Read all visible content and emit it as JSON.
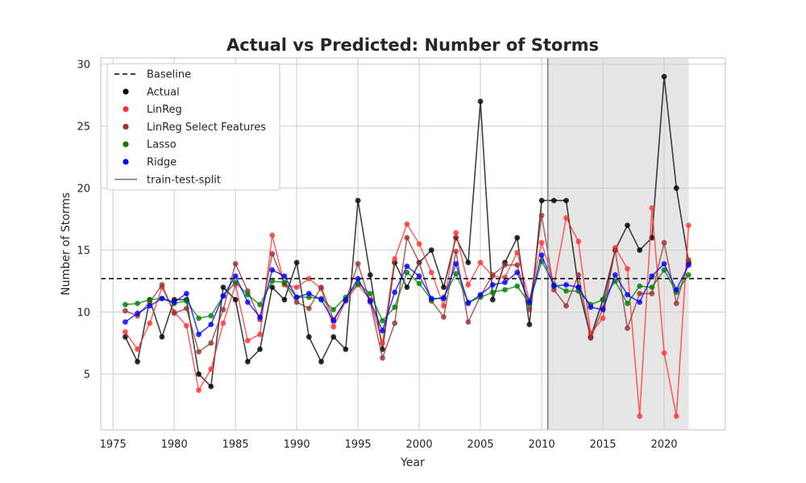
{
  "chart_data": {
    "type": "line",
    "title": "Actual vs Predicted: Number of Storms",
    "xlabel": "Year",
    "ylabel": "Number of Storms",
    "xlim": [
      1974,
      2025
    ],
    "ylim": [
      0.5,
      30.5
    ],
    "xticks": [
      1975,
      1980,
      1985,
      1990,
      1995,
      2000,
      2005,
      2010,
      2015,
      2020
    ],
    "yticks": [
      5,
      10,
      15,
      20,
      25,
      30
    ],
    "grid": true,
    "legend_position": "top-left",
    "baseline": {
      "name": "Baseline",
      "value": 12.7,
      "color": "#000000",
      "style": "dashed"
    },
    "train_test_split": {
      "name": "train-test-split",
      "x": 2010.5,
      "color": "#808080"
    },
    "test_region": {
      "x": [
        2010.5,
        2022
      ],
      "color": "#e6e6e6"
    },
    "years": [
      1976,
      1977,
      1978,
      1979,
      1980,
      1981,
      1982,
      1983,
      1984,
      1985,
      1986,
      1987,
      1988,
      1989,
      1990,
      1991,
      1992,
      1993,
      1994,
      1995,
      1996,
      1997,
      1998,
      1999,
      2000,
      2001,
      2002,
      2003,
      2004,
      2005,
      2006,
      2007,
      2008,
      2009,
      2010,
      2011,
      2012,
      2013,
      2014,
      2015,
      2016,
      2017,
      2018,
      2019,
      2020,
      2021,
      2022
    ],
    "series": [
      {
        "name": "Actual",
        "color": "#000000",
        "values": [
          8,
          6,
          11,
          8,
          11,
          11,
          5,
          4,
          12,
          11,
          6,
          7,
          12,
          11,
          14,
          8,
          6,
          8,
          7,
          19,
          13,
          7,
          14,
          12,
          14,
          15,
          12,
          16,
          14,
          27,
          11,
          14,
          16,
          9,
          19,
          19,
          19,
          12,
          8,
          11,
          15,
          17,
          15,
          16,
          29,
          20,
          14
        ]
      },
      {
        "name": "LinReg",
        "color": "#ff3333",
        "values": [
          8.4,
          7.0,
          9.1,
          12.0,
          10.0,
          8.9,
          3.7,
          5.4,
          9.1,
          12.2,
          7.7,
          8.2,
          16.2,
          12.2,
          12.0,
          12.7,
          11.9,
          8.8,
          10.9,
          12.2,
          11.0,
          7.5,
          14.3,
          17.1,
          15.5,
          13.2,
          10.5,
          16.4,
          12.2,
          14.0,
          12.9,
          12.8,
          14.8,
          10.9,
          15.6,
          12.2,
          17.6,
          15.7,
          8.3,
          9.5,
          15.2,
          13.5,
          1.6,
          18.4,
          6.7,
          1.6,
          17.0
        ]
      },
      {
        "name": "LinReg Select Features",
        "color": "#993333",
        "values": [
          10.1,
          9.7,
          10.8,
          12.2,
          9.9,
          10.3,
          6.8,
          7.5,
          10.2,
          13.9,
          11.7,
          9.4,
          14.7,
          12.3,
          10.8,
          10.3,
          12.0,
          9.4,
          10.9,
          13.9,
          10.8,
          6.3,
          9.1,
          16.0,
          14.0,
          10.9,
          9.6,
          14.9,
          9.2,
          11.3,
          13.0,
          13.8,
          13.8,
          10.2,
          17.8,
          11.8,
          10.5,
          13.0,
          7.9,
          10.3,
          15.0,
          8.7,
          11.5,
          11.5,
          15.6,
          10.7,
          14.2
        ]
      },
      {
        "name": "Lasso",
        "color": "#008000",
        "values": [
          10.6,
          10.7,
          11.0,
          11.1,
          10.7,
          10.9,
          9.5,
          9.7,
          11.3,
          12.4,
          11.4,
          10.6,
          12.5,
          12.4,
          11.2,
          11.2,
          11.1,
          10.2,
          11.2,
          12.3,
          11.5,
          9.3,
          10.4,
          13.2,
          12.3,
          11.0,
          11.2,
          13.1,
          10.8,
          11.2,
          11.6,
          11.8,
          12.1,
          10.7,
          14.1,
          12.2,
          11.7,
          11.7,
          10.6,
          11.0,
          12.5,
          10.7,
          12.1,
          12.0,
          13.4,
          11.6,
          13.0
        ]
      },
      {
        "name": "Ridge",
        "color": "#0000ff",
        "values": [
          9.2,
          9.9,
          10.5,
          11.1,
          10.8,
          11.5,
          8.2,
          9.0,
          11.3,
          12.9,
          10.8,
          9.6,
          13.4,
          12.9,
          11.2,
          11.5,
          11.0,
          9.3,
          11.0,
          12.7,
          10.9,
          8.5,
          11.6,
          13.7,
          12.9,
          11.1,
          11.1,
          13.9,
          10.7,
          11.4,
          12.2,
          12.4,
          13.2,
          10.8,
          14.6,
          12.1,
          12.2,
          12.0,
          10.4,
          10.2,
          13.0,
          11.4,
          10.8,
          12.9,
          13.9,
          11.8,
          13.8
        ]
      }
    ]
  }
}
